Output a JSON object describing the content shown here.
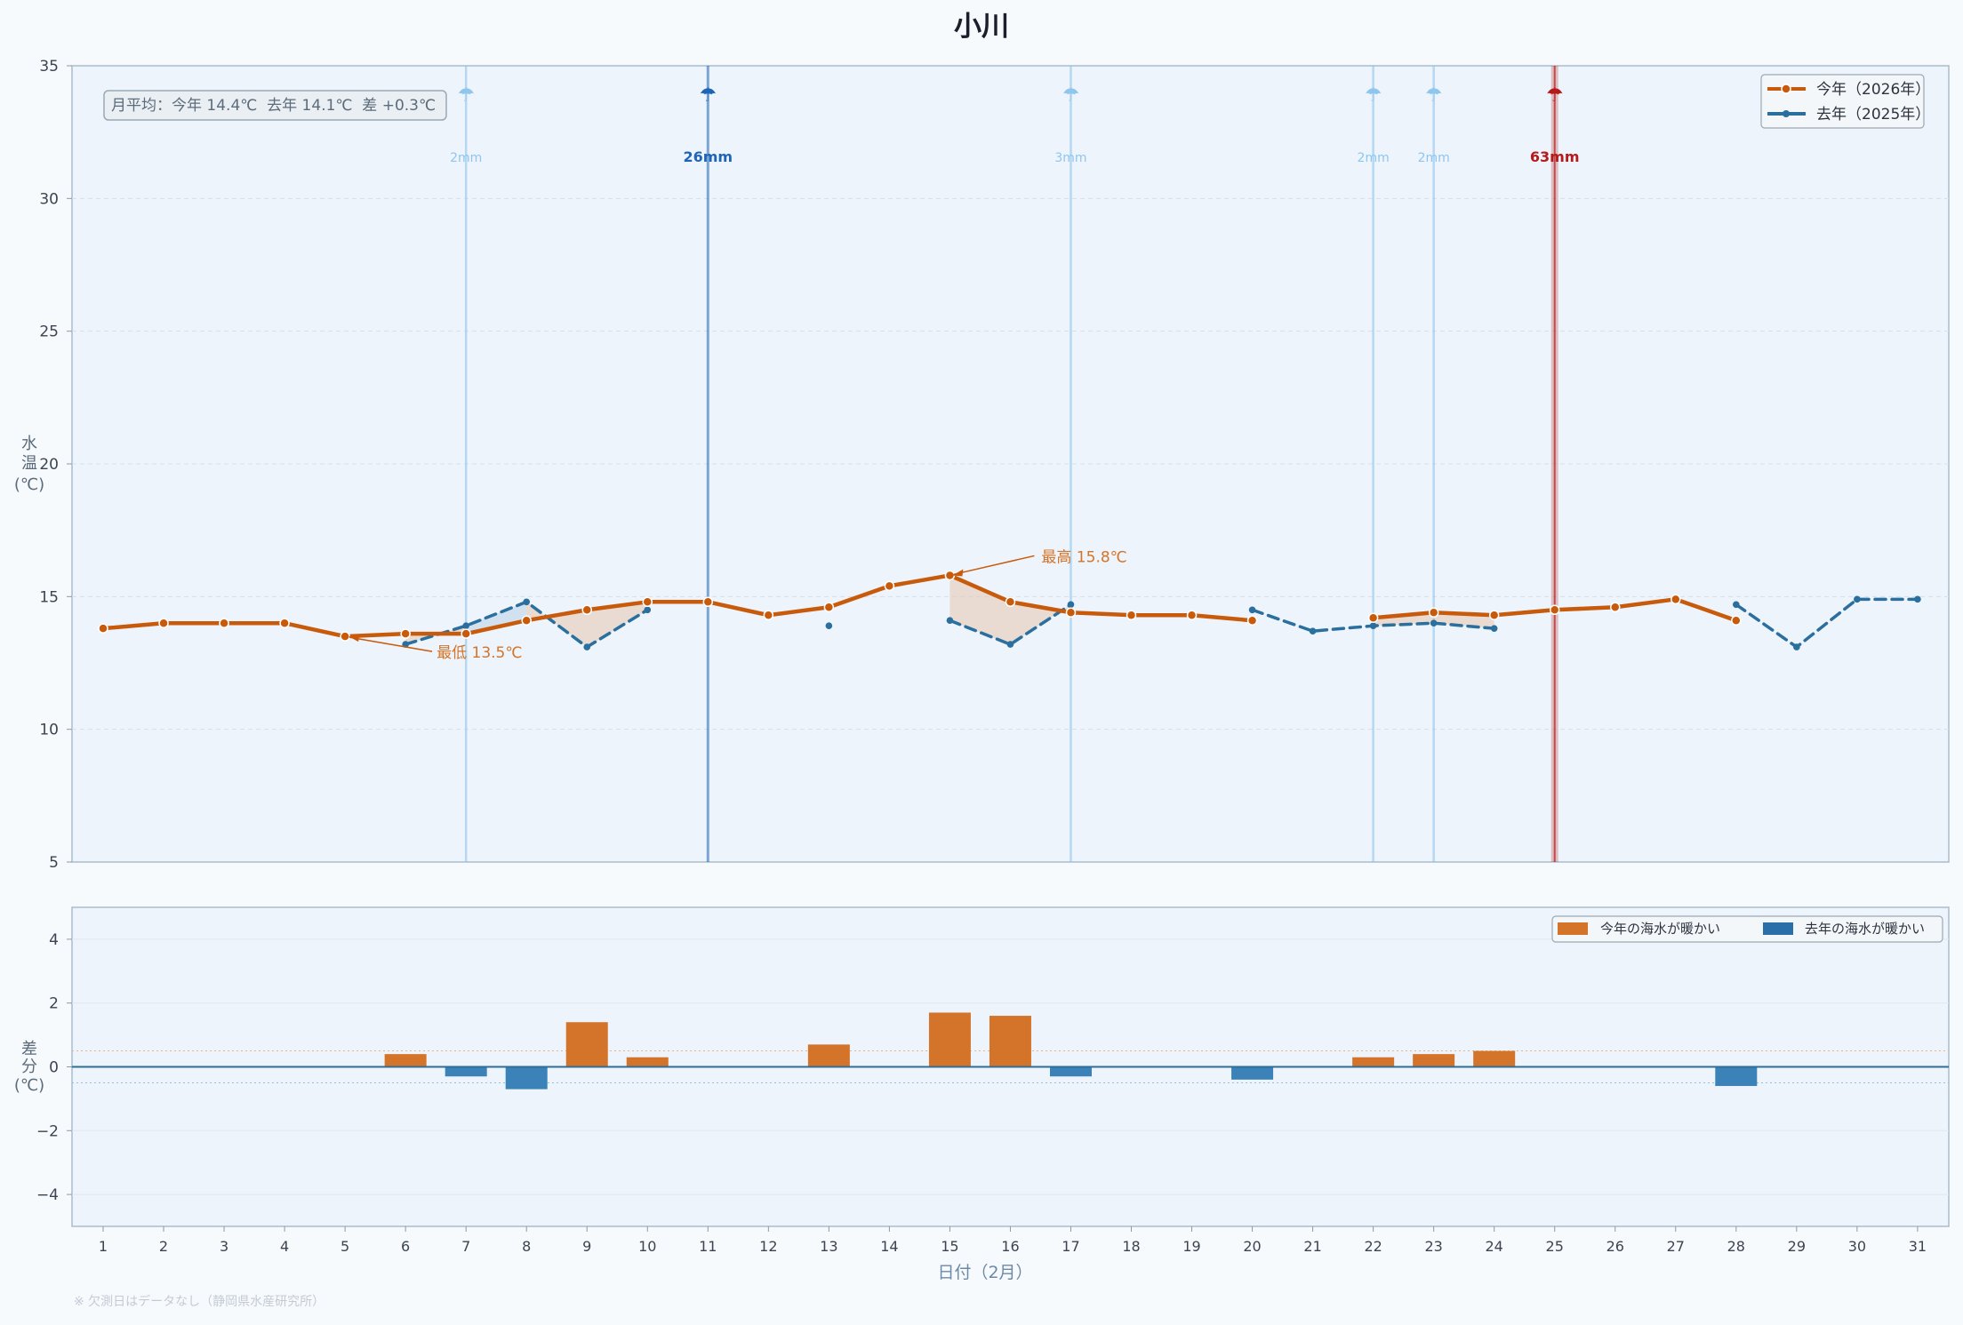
{
  "chart_data": [
    {
      "type": "line",
      "title": "小川",
      "ylabel": "水温(℃)",
      "ylim": [
        5,
        35
      ],
      "yticks": [
        5,
        10,
        15,
        20,
        25,
        30,
        35
      ],
      "x": [
        1,
        2,
        3,
        4,
        5,
        6,
        7,
        8,
        9,
        10,
        11,
        12,
        13,
        14,
        15,
        16,
        17,
        18,
        19,
        20,
        21,
        22,
        23,
        24,
        25,
        26,
        27,
        28,
        29,
        30,
        31
      ],
      "series": [
        {
          "name": "今年（2026年）",
          "color": "#c85a0b",
          "values": [
            13.8,
            14.0,
            14.0,
            14.0,
            13.5,
            13.6,
            13.6,
            14.1,
            14.5,
            14.8,
            14.8,
            14.3,
            14.6,
            15.4,
            15.8,
            14.8,
            14.4,
            14.3,
            14.3,
            14.1,
            null,
            14.2,
            14.4,
            14.3,
            14.5,
            14.6,
            14.9,
            14.1,
            null,
            null,
            null
          ]
        },
        {
          "name": "去年（2025年）",
          "color": "#2a6f9e",
          "values": [
            null,
            null,
            null,
            null,
            null,
            13.2,
            13.9,
            14.8,
            13.1,
            14.5,
            null,
            null,
            13.9,
            null,
            14.1,
            13.2,
            14.7,
            null,
            null,
            14.5,
            13.7,
            13.9,
            14.0,
            13.8,
            null,
            null,
            null,
            14.7,
            13.1,
            14.9,
            14.9
          ]
        }
      ],
      "rain_events": [
        {
          "day": 7,
          "label": "2mm",
          "level": "light"
        },
        {
          "day": 11,
          "label": "26mm",
          "level": "moderate"
        },
        {
          "day": 17,
          "label": "3mm",
          "level": "light"
        },
        {
          "day": 22,
          "label": "2mm",
          "level": "light"
        },
        {
          "day": 23,
          "label": "2mm",
          "level": "light"
        },
        {
          "day": 25,
          "label": "63mm",
          "level": "heavy"
        }
      ],
      "annotations": {
        "max": {
          "day": 15,
          "value": 15.8,
          "text": "最高 15.8℃"
        },
        "min": {
          "day": 5,
          "value": 13.5,
          "text": "最低 13.5℃"
        }
      },
      "summary_box": "月平均：今年 14.4℃  去年 14.1℃  差 +0.3℃",
      "legend_position": "top-right",
      "colors": {
        "this_year": "#c85a0b",
        "last_year": "#2a6f9e",
        "rain_light": "#8fc6ee",
        "rain_moderate": "#1f65b7",
        "rain_heavy": "#b51a1a"
      }
    },
    {
      "type": "bar",
      "ylabel": "差分(℃)",
      "ylim": [
        -5,
        5
      ],
      "yticks": [
        -4,
        -2,
        0,
        2,
        4
      ],
      "xlabel": "日付（2月）",
      "categories": [
        1,
        2,
        3,
        4,
        5,
        6,
        7,
        8,
        9,
        10,
        11,
        12,
        13,
        14,
        15,
        16,
        17,
        18,
        19,
        20,
        21,
        22,
        23,
        24,
        25,
        26,
        27,
        28,
        29,
        30,
        31
      ],
      "values": [
        null,
        null,
        null,
        null,
        null,
        0.4,
        -0.3,
        -0.7,
        1.4,
        0.3,
        null,
        null,
        0.7,
        null,
        1.7,
        1.6,
        -0.3,
        null,
        null,
        -0.4,
        null,
        0.3,
        0.4,
        0.5,
        null,
        null,
        null,
        -0.6,
        null,
        null,
        null
      ],
      "threshold_lines": [
        0.5,
        -0.5
      ],
      "legend": [
        {
          "name": "今年の海水が暖かい",
          "color": "#d4742a"
        },
        {
          "name": "去年の海水が暖かい",
          "color": "#3a82b8"
        }
      ],
      "legend_position": "top-right"
    }
  ],
  "footnote": "※ 欠測日はデータなし（静岡県水産研究所）"
}
